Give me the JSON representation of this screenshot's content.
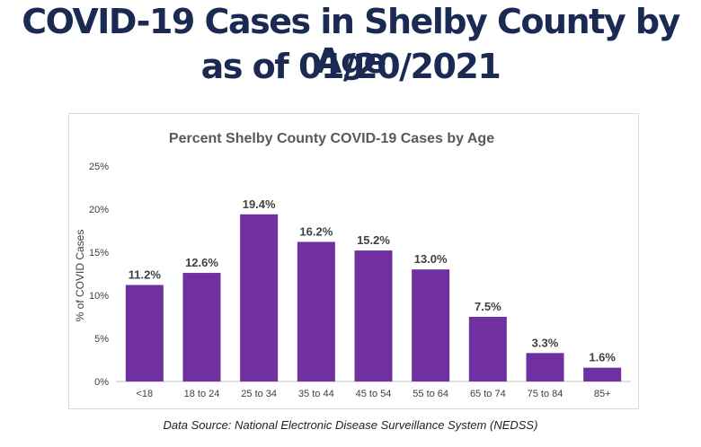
{
  "header": {
    "title_line1": "COVID-19 Cases in Shelby County by Age",
    "title_line2": "as of 01/20/2021"
  },
  "footer": {
    "source": "Data Source: National Electronic Disease Surveillance System (NEDSS)"
  },
  "chart_data": {
    "type": "bar",
    "title": "Percent Shelby County COVID-19 Cases by Age",
    "xlabel": "",
    "ylabel": "% of COVID Cases",
    "categories": [
      "<18",
      "18 to 24",
      "25 to 34",
      "35 to 44",
      "45 to 54",
      "55 to 64",
      "65 to 74",
      "75 to 84",
      "85+"
    ],
    "values": [
      11.2,
      12.6,
      19.4,
      16.2,
      15.2,
      13.0,
      7.5,
      3.3,
      1.6
    ],
    "data_labels": [
      "11.2%",
      "12.6%",
      "19.4%",
      "16.2%",
      "15.2%",
      "13.0%",
      "7.5%",
      "3.3%",
      "1.6%"
    ],
    "ylim": [
      0,
      25
    ],
    "yticks": [
      0,
      5,
      10,
      15,
      20,
      25
    ],
    "ytick_labels": [
      "0%",
      "5%",
      "10%",
      "15%",
      "20%",
      "25%"
    ],
    "bar_color": "#7030a0",
    "grid": false,
    "legend": "none"
  }
}
